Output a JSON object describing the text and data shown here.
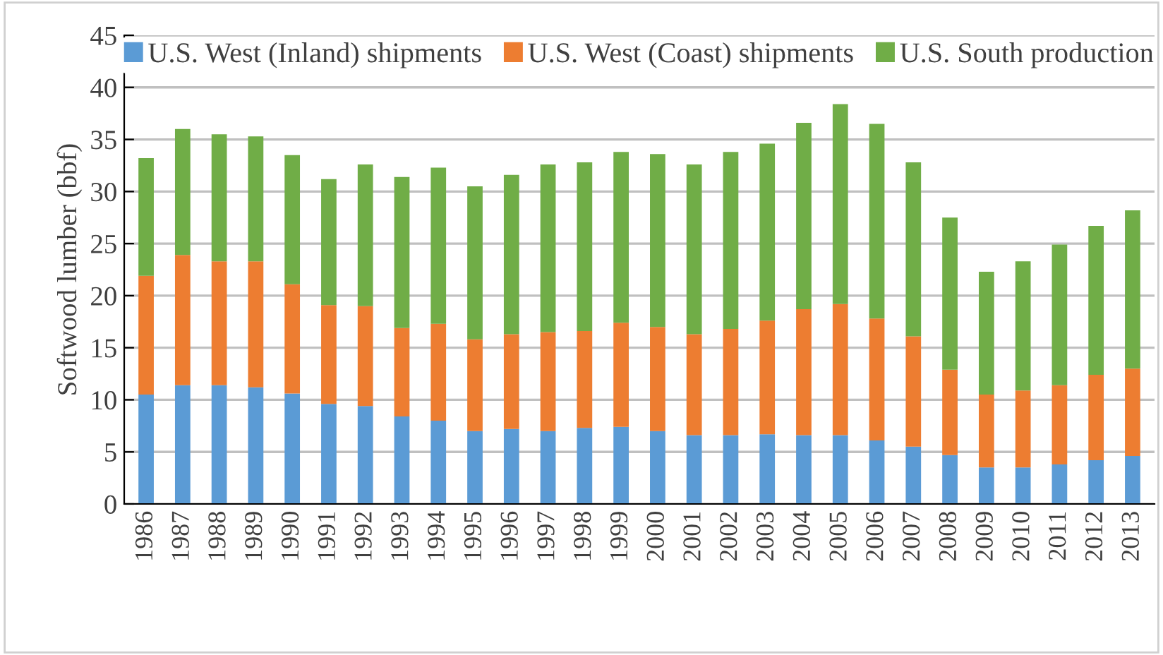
{
  "chart_data": {
    "type": "bar",
    "stacked": true,
    "ylabel": "Softwood lumber (bbf)",
    "categories": [
      "1986",
      "1987",
      "1988",
      "1989",
      "1990",
      "1991",
      "1992",
      "1993",
      "1994",
      "1995",
      "1996",
      "1997",
      "1998",
      "1999",
      "2000",
      "2001",
      "2002",
      "2003",
      "2004",
      "2005",
      "2006",
      "2007",
      "2008",
      "2009",
      "2010",
      "2011",
      "2012",
      "2013"
    ],
    "series": [
      {
        "name": "U.S. West (Inland) shipments",
        "color": "#5b9bd5",
        "values": [
          10.5,
          11.4,
          11.4,
          11.2,
          10.6,
          9.6,
          9.4,
          8.4,
          8.0,
          7.0,
          7.2,
          7.0,
          7.3,
          7.4,
          7.0,
          6.6,
          6.6,
          6.7,
          6.6,
          6.6,
          6.1,
          5.5,
          4.7,
          3.5,
          3.5,
          3.8,
          4.2,
          4.6
        ]
      },
      {
        "name": "U.S. West (Coast) shipments",
        "color": "#ed7d31",
        "values": [
          11.4,
          12.5,
          11.9,
          12.1,
          10.5,
          9.5,
          9.6,
          8.5,
          9.3,
          8.8,
          9.1,
          9.5,
          9.3,
          10.0,
          10.0,
          9.7,
          10.2,
          10.9,
          12.1,
          12.6,
          11.7,
          10.6,
          8.2,
          7.0,
          7.4,
          7.6,
          8.2,
          8.4
        ]
      },
      {
        "name": "U.S. South production",
        "color": "#70ad47",
        "values": [
          11.3,
          12.1,
          12.2,
          12.0,
          12.4,
          12.1,
          13.6,
          14.5,
          15.0,
          14.7,
          15.3,
          16.1,
          16.2,
          16.4,
          16.6,
          16.3,
          17.0,
          17.0,
          17.9,
          19.2,
          18.7,
          16.7,
          14.6,
          11.8,
          12.4,
          13.5,
          14.3,
          15.2
        ]
      }
    ],
    "ylim": [
      0,
      45
    ],
    "yticks": [
      0,
      5,
      10,
      15,
      20,
      25,
      30,
      35,
      40,
      45
    ],
    "grid": "y",
    "legend": "top"
  }
}
